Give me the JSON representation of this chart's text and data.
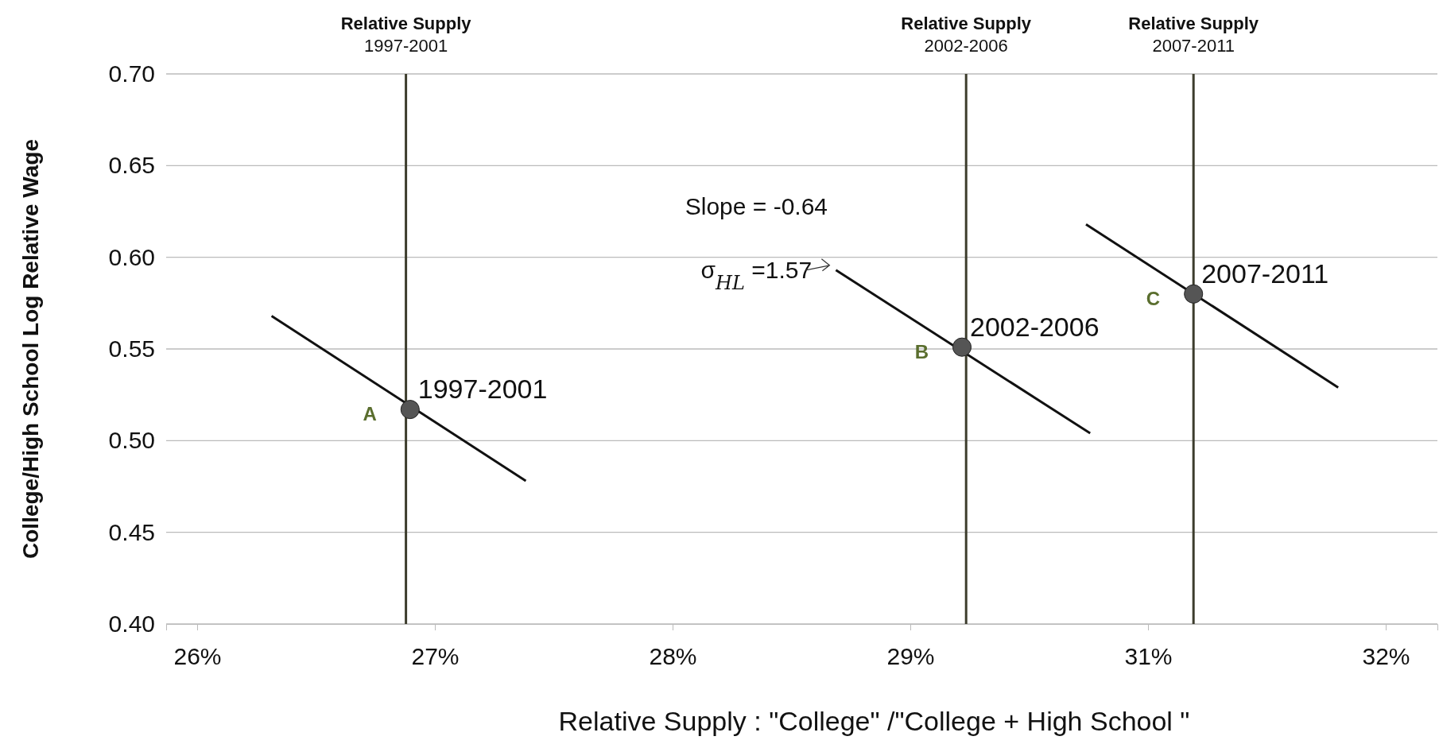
{
  "chart_data": {
    "type": "scatter",
    "xlabel": "Relative Supply  :    \"College\" /\"College + High School \"",
    "ylabel": "College/High School Log Relative  Wage",
    "xlim": [
      25.85,
      32.0
    ],
    "xticks": [
      {
        "value": 26,
        "label": "26%"
      },
      {
        "value": 27.15,
        "label": "27%"
      },
      {
        "value": 28.3,
        "label": "28%"
      },
      {
        "value": 29.45,
        "label": "29%"
      },
      {
        "value": 30.6,
        "label": "31%"
      },
      {
        "value": 31.75,
        "label": "32%"
      }
    ],
    "ylim": [
      0.4,
      0.7
    ],
    "yticks": [
      {
        "value": 0.4,
        "label": "0.40"
      },
      {
        "value": 0.45,
        "label": "0.45"
      },
      {
        "value": 0.5,
        "label": "0.50"
      },
      {
        "value": 0.55,
        "label": "0.55"
      },
      {
        "value": 0.6,
        "label": "0.60"
      },
      {
        "value": 0.65,
        "label": "0.65"
      },
      {
        "value": 0.7,
        "label": "0.70"
      }
    ],
    "grid": "y",
    "series": [
      {
        "type": "line",
        "color": "#111111",
        "x": [
          26.36,
          27.59
        ],
        "values": [
          0.568,
          0.478
        ],
        "marker": "none",
        "line_style": "solid"
      },
      {
        "type": "line",
        "color": "#111111",
        "x": [
          29.09,
          30.32
        ],
        "values": [
          0.593,
          0.504
        ],
        "marker": "none",
        "line_style": "solid"
      },
      {
        "type": "line",
        "color": "#111111",
        "x": [
          30.3,
          31.52
        ],
        "values": [
          0.618,
          0.529
        ],
        "marker": "none",
        "line_style": "solid"
      },
      {
        "color": "#555555",
        "x": [
          27.03,
          29.7,
          30.82
        ],
        "values": [
          0.517,
          0.551,
          0.58
        ],
        "marker": "circle",
        "value_labels": [
          "1997-2001",
          "2002-2006",
          "2007-2011"
        ]
      }
    ],
    "ref_lines": [
      {
        "axis": "x",
        "value": 27.01,
        "label": "Relative Supply\n1997-2001",
        "color": "#3d3d2d"
      },
      {
        "axis": "x",
        "value": 29.72,
        "label": "Relative Supply\n2002-2006",
        "color": "#3d3d2d"
      },
      {
        "axis": "x",
        "value": 30.82,
        "label": "Relative Supply\n2007-2011",
        "color": "#3d3d2d"
      }
    ],
    "annotations": [
      "A",
      "B",
      "C",
      "Slope = -0.64",
      "σ$_{HL}$ =1.57"
    ]
  }
}
